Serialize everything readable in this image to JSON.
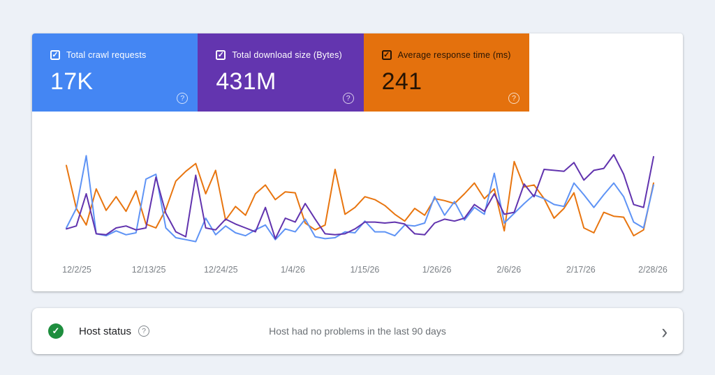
{
  "page": {
    "background_color": "#edf1f7"
  },
  "icons": {
    "check": "✓",
    "help": "?",
    "chevron": "›"
  },
  "metric_cards": [
    {
      "label": "Total crawl requests",
      "value": "17K",
      "bg": "#4486f3",
      "text": "#ffffff",
      "checked": true
    },
    {
      "label": "Total download size (Bytes)",
      "value": "431M",
      "bg": "#6335af",
      "text": "#ffffff",
      "checked": true
    },
    {
      "label": "Average response time (ms)",
      "value": "241",
      "bg": "#e4710d",
      "text": "#261404",
      "checked": true
    }
  ],
  "chart_data": {
    "type": "line",
    "title": "",
    "xlabel": "",
    "ylabel": "",
    "grid": false,
    "legend_position": "none",
    "y_axis": "unlabeled",
    "ylim": [
      0,
      100
    ],
    "x_labels": [
      "12/2/25",
      "12/13/25",
      "12/24/25",
      "1/4/26",
      "1/15/26",
      "1/26/26",
      "2/6/26",
      "2/17/26",
      "2/28/26"
    ],
    "series": [
      {
        "name": "Total crawl requests",
        "color": "#5e93f5",
        "values": [
          20,
          40,
          94,
          14,
          12,
          17,
          13,
          15,
          70,
          75,
          20,
          10,
          8,
          6,
          30,
          13,
          22,
          15,
          12,
          18,
          23,
          8,
          19,
          16,
          29,
          11,
          9,
          10,
          16,
          15,
          27,
          16,
          16,
          12,
          23,
          22,
          25,
          52,
          33,
          47,
          28,
          41,
          34,
          76,
          25,
          35,
          45,
          54,
          50,
          44,
          42,
          66,
          54,
          41,
          54,
          66,
          52,
          26,
          20,
          64
        ]
      },
      {
        "name": "Total download size (Bytes)",
        "color": "#6133ae",
        "values": [
          19,
          22,
          55,
          14,
          13,
          20,
          22,
          18,
          20,
          72,
          35,
          16,
          11,
          74,
          20,
          18,
          29,
          24,
          20,
          16,
          41,
          9,
          30,
          26,
          45,
          29,
          14,
          13,
          14,
          19,
          26,
          26,
          25,
          26,
          24,
          14,
          13,
          25,
          29,
          27,
          30,
          44,
          37,
          55,
          34,
          36,
          65,
          52,
          80,
          79,
          78,
          87,
          69,
          79,
          81,
          95,
          75,
          44,
          41,
          93
        ]
      },
      {
        "name": "Average response time (ms)",
        "color": "#e8750f",
        "values": [
          84,
          40,
          23,
          60,
          38,
          52,
          37,
          58,
          24,
          20,
          39,
          68,
          78,
          86,
          55,
          79,
          28,
          42,
          33,
          55,
          64,
          49,
          57,
          56,
          25,
          18,
          23,
          80,
          34,
          41,
          52,
          49,
          43,
          34,
          27,
          40,
          33,
          50,
          48,
          45,
          55,
          66,
          50,
          60,
          17,
          88,
          62,
          64,
          50,
          30,
          40,
          56,
          20,
          15,
          36,
          32,
          31,
          12,
          18,
          66
        ]
      }
    ]
  },
  "host_status": {
    "label": "Host status",
    "message": "Host had no problems in the last 90 days",
    "status": "ok",
    "status_color": "#1e8e3e"
  }
}
